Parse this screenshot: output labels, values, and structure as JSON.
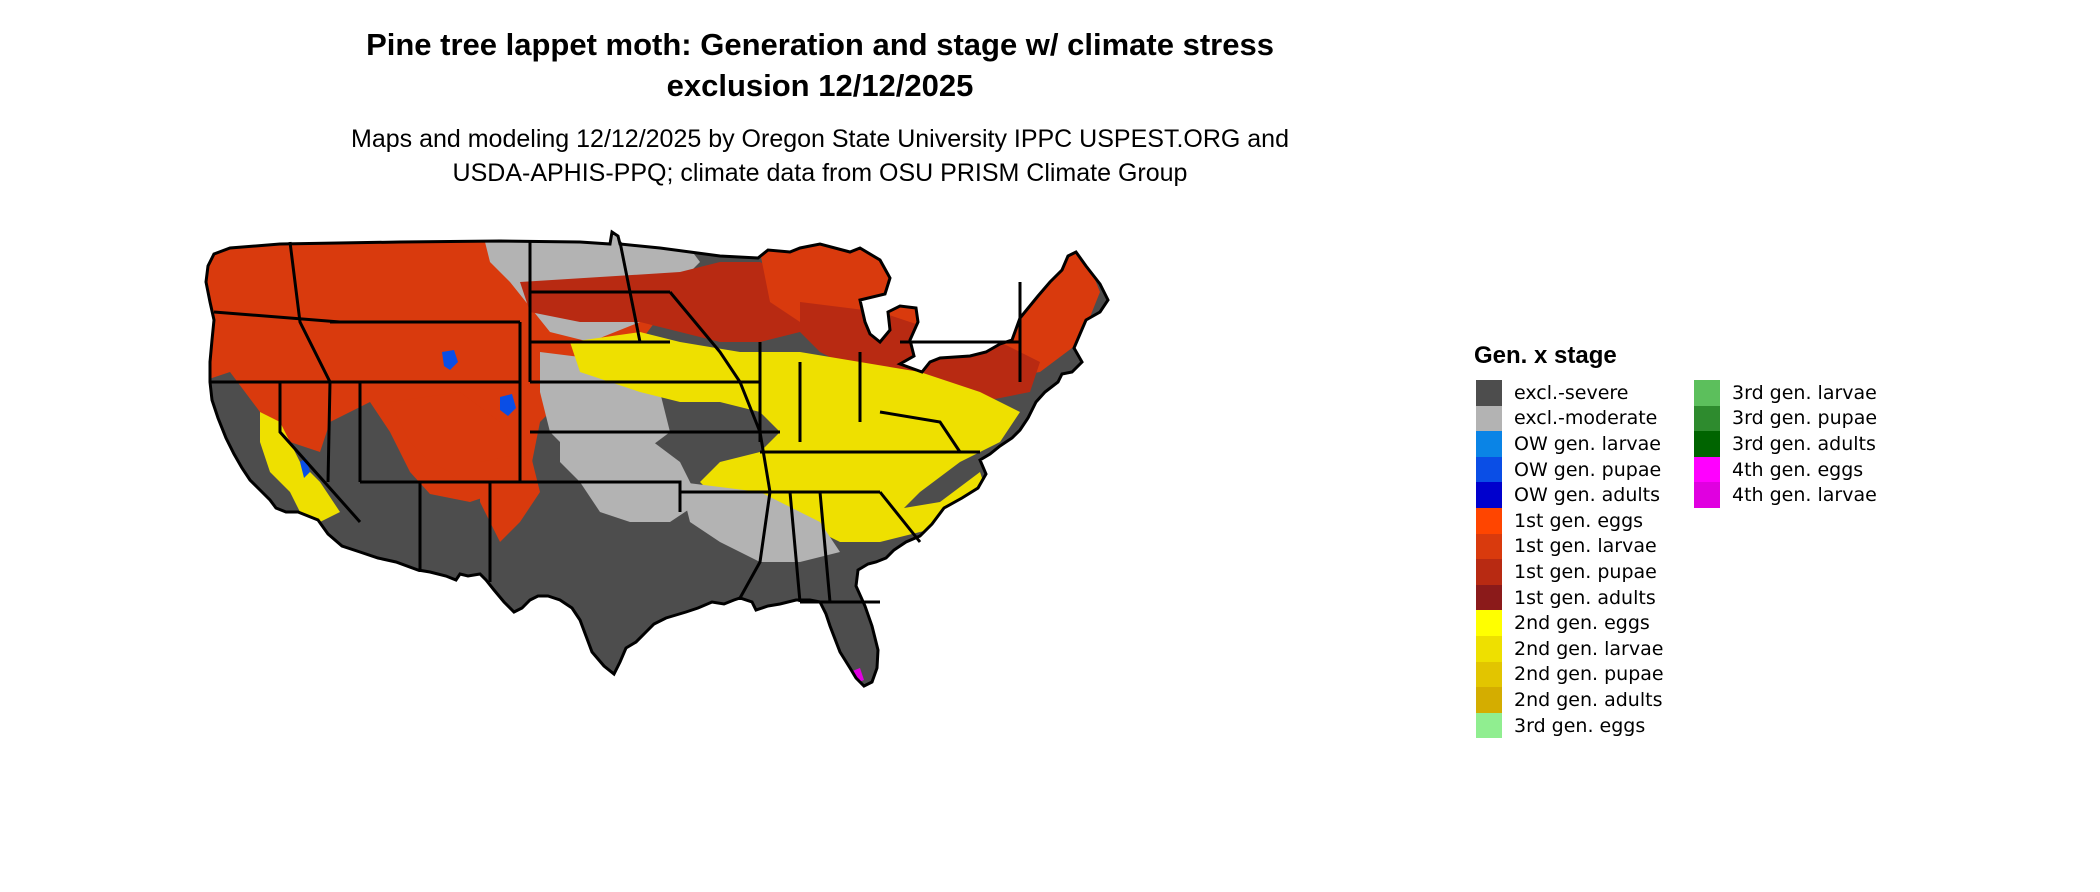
{
  "title": {
    "line1": "Pine tree lappet moth: Generation and stage w/ climate stress",
    "line2": "exclusion 12/12/2025"
  },
  "subtitle": {
    "line1": "Maps and modeling 12/12/2025 by Oregon State University IPPC USPEST.ORG and",
    "line2": "USDA-APHIS-PPQ; climate data from OSU PRISM Climate Group"
  },
  "legend": {
    "title": "Gen. x stage",
    "items": [
      {
        "label": "excl.-severe",
        "color": "#4d4d4d"
      },
      {
        "label": "excl.-moderate",
        "color": "#b3b3b3"
      },
      {
        "label": "OW gen. larvae",
        "color": "#0a84e6"
      },
      {
        "label": "OW gen. pupae",
        "color": "#0a4ee6"
      },
      {
        "label": "OW gen. adults",
        "color": "#0000cd"
      },
      {
        "label": "1st gen. eggs",
        "color": "#ff4500"
      },
      {
        "label": "1st gen. larvae",
        "color": "#d93a0d"
      },
      {
        "label": "1st gen. pupae",
        "color": "#b82a12"
      },
      {
        "label": "1st gen. adults",
        "color": "#8b1a1a"
      },
      {
        "label": "2nd gen. eggs",
        "color": "#ffff00"
      },
      {
        "label": "2nd gen. larvae",
        "color": "#eee000"
      },
      {
        "label": "2nd gen. pupae",
        "color": "#e2c500"
      },
      {
        "label": "2nd gen. adults",
        "color": "#d4ad00"
      },
      {
        "label": "3rd gen. eggs",
        "color": "#90ee90"
      },
      {
        "label": "3rd gen. larvae",
        "color": "#5cbf5c"
      },
      {
        "label": "3rd gen. pupae",
        "color": "#2e8b2e"
      },
      {
        "label": "3rd gen. adults",
        "color": "#006400"
      },
      {
        "label": "4th gen. eggs",
        "color": "#ff00ff"
      },
      {
        "label": "4th gen. larvae",
        "color": "#e000e0"
      }
    ]
  }
}
